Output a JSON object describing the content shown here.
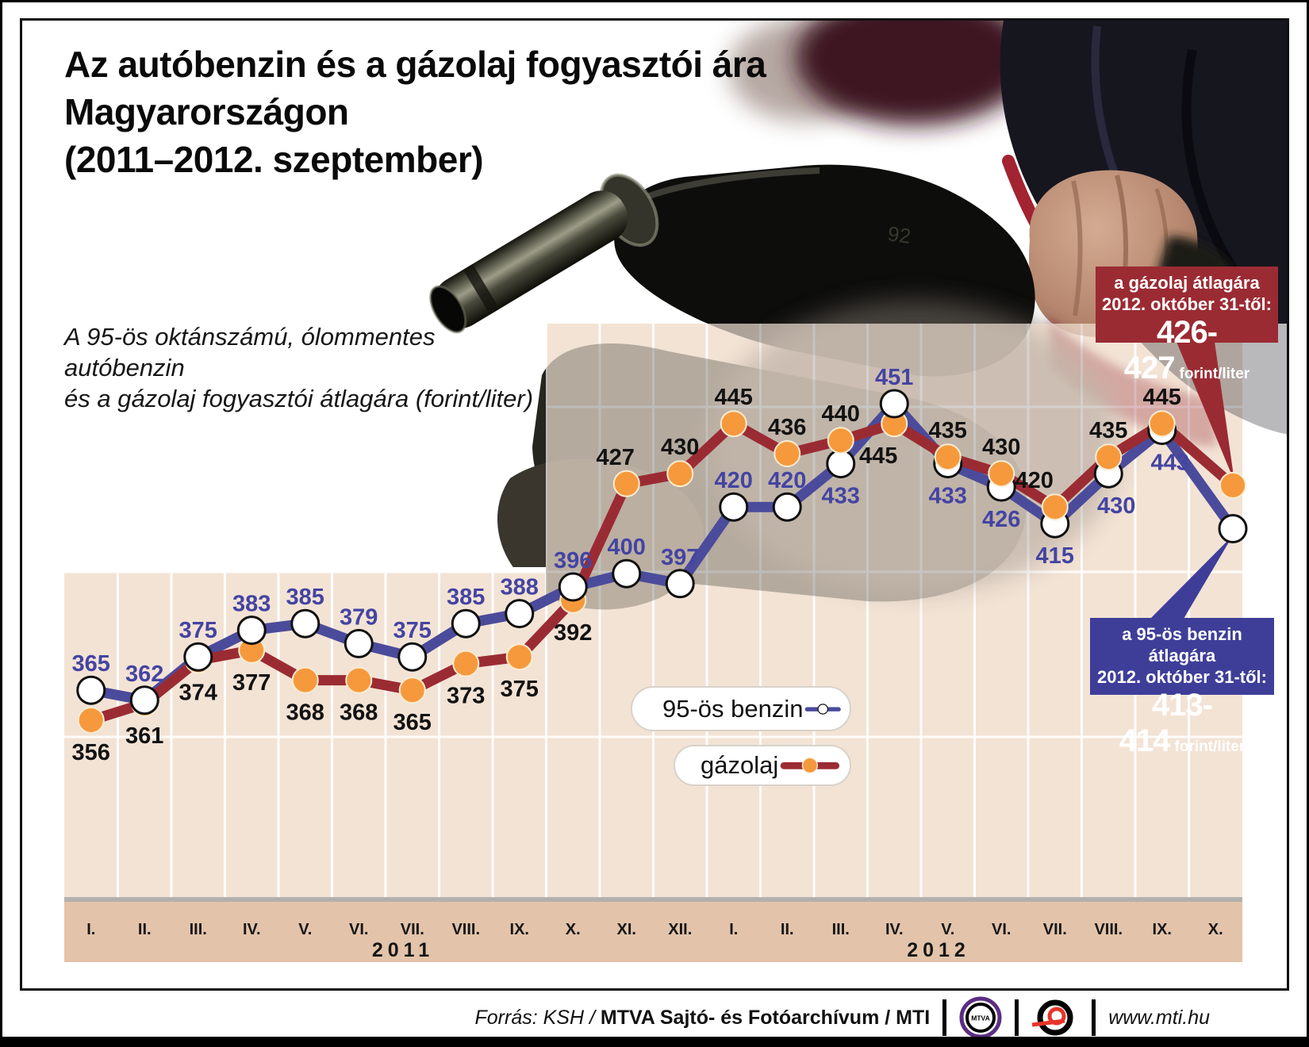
{
  "title": {
    "line1": "Az autóbenzin és a gázolaj fogyasztói ára",
    "line2": "Magyarországon",
    "line3": "(2011–2012. szeptember)"
  },
  "subtitle": {
    "line1": "A 95-ös oktánszámú, ólommentes autóbenzin",
    "line2": "és a gázolaj fogyasztói átlagára (forint/liter)"
  },
  "chart_data": {
    "type": "line",
    "unit": "forint/liter",
    "x_groups": [
      {
        "year": "2011",
        "months": [
          "I.",
          "II.",
          "III.",
          "IV.",
          "V.",
          "VI.",
          "VII.",
          "VIII.",
          "IX.",
          "X.",
          "XI.",
          "XII."
        ]
      },
      {
        "year": "2012",
        "months": [
          "I.",
          "II.",
          "III.",
          "IV.",
          "V.",
          "VI.",
          "VII.",
          "VIII.",
          "IX.",
          "X."
        ]
      }
    ],
    "series": [
      {
        "name": "95-ös benzin",
        "line_color": "#4B4B9B",
        "label_color": "#4444A2",
        "marker": "white-circle",
        "values": [
          365,
          362,
          375,
          383,
          385,
          379,
          375,
          385,
          388,
          396,
          400,
          397,
          420,
          420,
          433,
          451,
          433,
          426,
          415,
          430,
          443
        ]
      },
      {
        "name": "gázolaj",
        "line_color": "#9B2B33",
        "label_color": "#121212",
        "marker": "orange-circle",
        "values": [
          356,
          361,
          374,
          377,
          368,
          368,
          365,
          373,
          375,
          392,
          427,
          430,
          445,
          436,
          440,
          445,
          435,
          430,
          420,
          435,
          445
        ]
      }
    ],
    "october_2012_endpoints": {
      "benzin": 413.5,
      "gazolaj": 426.5
    },
    "y_range_implied": [
      350,
      455
    ],
    "grid": "on"
  },
  "callouts": {
    "gazolaj": {
      "line1": "a gázolaj átlagára",
      "line2": "2012. október 31-től:",
      "value": "426-427",
      "unit": "forint/liter",
      "bg": "#9B2B33"
    },
    "benzin": {
      "line1": "a 95-ös benzin átlagára",
      "line2": "2012. október 31-től:",
      "value": "413-414",
      "unit": "forint/liter",
      "bg": "#3E3E99"
    }
  },
  "legend": [
    {
      "label": "95-ös benzin"
    },
    {
      "label": "gázolaj"
    }
  ],
  "photo": {
    "marking": "92"
  },
  "footer": {
    "source_italic": "Forrás: KSH /",
    "source_bold": "MTVA Sajtó- és Fotóarchívum / MTI",
    "mtva_logo_text": "MTVA",
    "website": "www.mti.hu"
  },
  "colors": {
    "plot_bg": "#F3E3D5",
    "axis_strip": "#E3C4AA",
    "gridline": "#FFFFFF",
    "marker_orange": "#F6993C",
    "benzin_blue": "#4B4B9B",
    "gazolaj_red": "#9B2B33"
  }
}
